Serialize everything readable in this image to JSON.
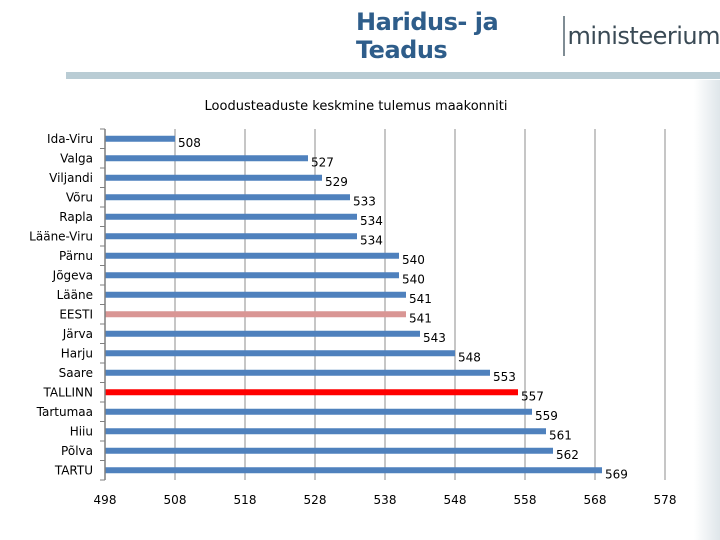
{
  "brand": {
    "part_bold": "Haridus- ja Teadus",
    "part_light": "ministeerium"
  },
  "chart_data": {
    "type": "bar",
    "orientation": "horizontal",
    "title": "Loodusteaduste keskmine tulemus maakonniti",
    "categories": [
      "Ida-Viru",
      "Valga",
      "Viljandi",
      "Võru",
      "Rapla",
      "Lääne-Viru",
      "Pärnu",
      "Jõgeva",
      "Lääne",
      "EESTI",
      "Järva",
      "Harju",
      "Saare",
      "TALLINN",
      "Tartumaa",
      "Hiiu",
      "Põlva",
      "TARTU"
    ],
    "values": [
      508,
      527,
      529,
      533,
      534,
      534,
      540,
      540,
      541,
      541,
      543,
      548,
      553,
      557,
      559,
      561,
      562,
      569
    ],
    "colors": [
      "#4f81bd",
      "#4f81bd",
      "#4f81bd",
      "#4f81bd",
      "#4f81bd",
      "#4f81bd",
      "#4f81bd",
      "#4f81bd",
      "#4f81bd",
      "#d99694",
      "#4f81bd",
      "#4f81bd",
      "#4f81bd",
      "#ff0000",
      "#4f81bd",
      "#4f81bd",
      "#4f81bd",
      "#4f81bd"
    ],
    "xlim": [
      498,
      578
    ],
    "xticks": [
      498,
      508,
      518,
      528,
      538,
      548,
      558,
      568,
      578
    ],
    "grid": true,
    "legend": "none"
  }
}
